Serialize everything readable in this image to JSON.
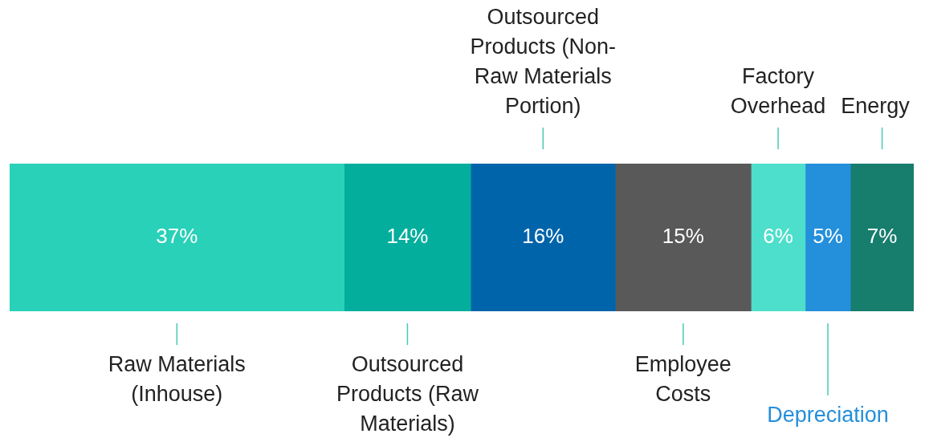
{
  "chart_data": {
    "type": "bar",
    "orientation": "horizontal",
    "stacked": true,
    "legend": false,
    "categories": [
      null
    ],
    "series": [
      {
        "name": "Raw Materials (Inhouse)",
        "color": "#28d1b8",
        "values": [
          37
        ],
        "value_labels": [
          "37%"
        ]
      },
      {
        "name": "Outsourced Products (Raw Materials)",
        "color": "#03ae9d",
        "values": [
          14
        ],
        "value_labels": [
          "14%"
        ]
      },
      {
        "name": "Outsourced Products (Non-Raw Materials Portion)",
        "color": "#0064aa",
        "values": [
          16
        ],
        "value_labels": [
          "16%"
        ]
      },
      {
        "name": "Employee Costs",
        "color": "#595959",
        "values": [
          15
        ],
        "value_labels": [
          "15%"
        ]
      },
      {
        "name": "Factory Overhead",
        "color": "#4ddfcb",
        "values": [
          6
        ],
        "value_labels": [
          "6%"
        ]
      },
      {
        "name": "Depreciation",
        "color": "#248fdb",
        "values": [
          5
        ],
        "value_labels": [
          "5%"
        ]
      },
      {
        "name": "Energy",
        "color": "#177d6d",
        "values": [
          7
        ],
        "value_labels": [
          "7%"
        ]
      }
    ]
  }
}
